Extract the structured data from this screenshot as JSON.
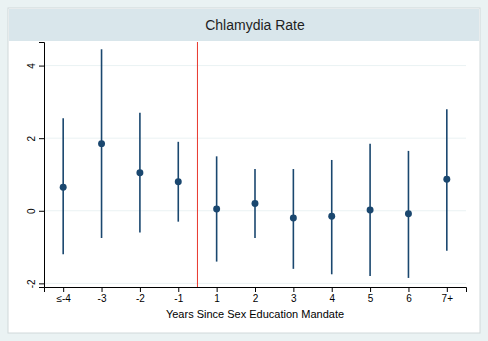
{
  "chart_data": {
    "type": "scatter",
    "title": "Chlamydia Rate",
    "x_label": "Years Since Sex Education Mandate",
    "categories": [
      "≤-4",
      "-3",
      "-2",
      "-1",
      "1",
      "2",
      "3",
      "4",
      "5",
      "6",
      "7+"
    ],
    "values": [
      0.65,
      1.85,
      1.05,
      0.8,
      0.05,
      0.2,
      -0.2,
      -0.15,
      0.02,
      -0.08,
      0.87
    ],
    "lower": [
      -1.2,
      -0.75,
      -0.6,
      -0.3,
      -1.4,
      -0.75,
      -1.6,
      -1.75,
      -1.8,
      -1.85,
      -1.1
    ],
    "upper": [
      2.55,
      4.45,
      2.7,
      1.9,
      1.5,
      1.15,
      1.15,
      1.4,
      1.85,
      1.65,
      2.8
    ],
    "color": "#1a476f",
    "marker": "circle",
    "xlim": [
      -0.5,
      10.5
    ],
    "ylim": [
      -2.1,
      4.65
    ],
    "yticks": [
      -2,
      0,
      2,
      4
    ],
    "grid": true,
    "reference_line": {
      "x": 3.5,
      "color": "#e8372c"
    }
  }
}
